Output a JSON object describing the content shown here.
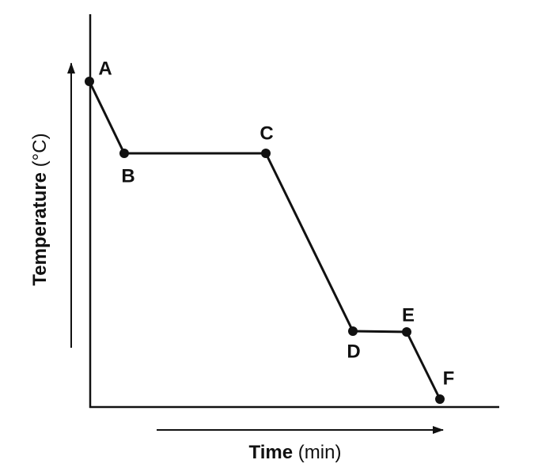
{
  "axes": {
    "x_label": {
      "name": "Time",
      "unit": "(min)"
    },
    "y_label": {
      "name": "Temperature",
      "unit": "(°C)"
    }
  },
  "points": [
    {
      "label": "A"
    },
    {
      "label": "B"
    },
    {
      "label": "C"
    },
    {
      "label": "D"
    },
    {
      "label": "E"
    },
    {
      "label": "F"
    }
  ]
}
